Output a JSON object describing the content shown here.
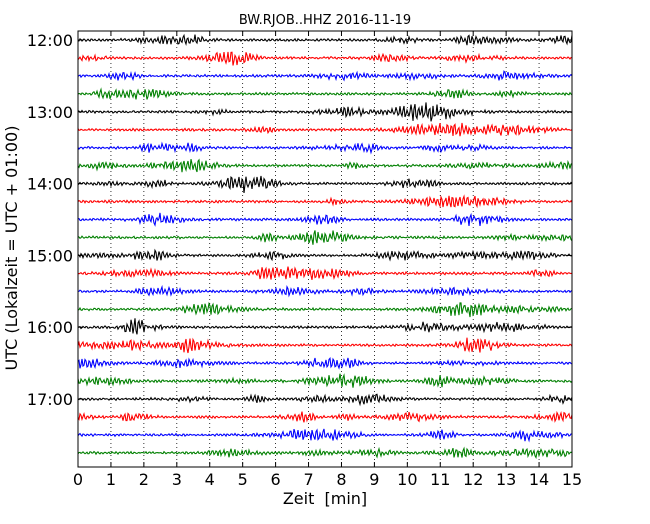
{
  "chart_data": {
    "type": "line",
    "title": "BW.RJOB..HHZ 2016-11-19",
    "xlabel": "Zeit  [min]",
    "ylabel": "UTC (Lokalzeit = UTC + 01:00)",
    "xlim": [
      0,
      15
    ],
    "x_ticks": [
      0,
      1,
      2,
      3,
      4,
      5,
      6,
      7,
      8,
      9,
      10,
      11,
      12,
      13,
      14,
      15
    ],
    "y_tick_labels": [
      "12:00",
      "13:00",
      "14:00",
      "15:00",
      "16:00",
      "17:00"
    ],
    "traces_per_hour": 4,
    "trace_count": 24,
    "color_cycle": [
      "#000000",
      "#ff0000",
      "#0000ff",
      "#008000"
    ],
    "grid": "vertical dotted at each minute",
    "legend": "none"
  }
}
